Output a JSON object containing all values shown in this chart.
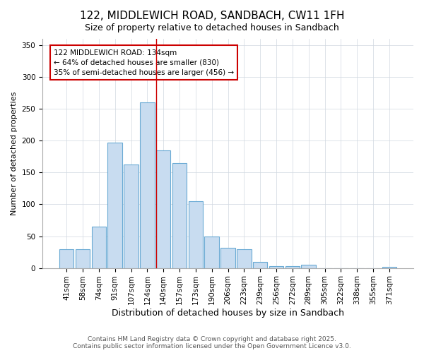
{
  "title": "122, MIDDLEWICH ROAD, SANDBACH, CW11 1FH",
  "subtitle": "Size of property relative to detached houses in Sandbach",
  "xlabel": "Distribution of detached houses by size in Sandbach",
  "ylabel": "Number of detached properties",
  "categories": [
    "41sqm",
    "58sqm",
    "74sqm",
    "91sqm",
    "107sqm",
    "124sqm",
    "140sqm",
    "157sqm",
    "173sqm",
    "190sqm",
    "206sqm",
    "223sqm",
    "239sqm",
    "256sqm",
    "272sqm",
    "289sqm",
    "305sqm",
    "322sqm",
    "338sqm",
    "355sqm",
    "371sqm"
  ],
  "values": [
    30,
    30,
    65,
    197,
    163,
    260,
    185,
    165,
    105,
    50,
    32,
    30,
    10,
    3,
    3,
    5,
    0,
    0,
    0,
    0,
    2
  ],
  "bar_color": "#c8dcf0",
  "bar_edge_color": "#6aaad4",
  "vline_color": "#cc0000",
  "vline_pos": 5.55,
  "annotation_text": "122 MIDDLEWICH ROAD: 134sqm\n← 64% of detached houses are smaller (830)\n35% of semi-detached houses are larger (456) →",
  "annotation_box_color": "#ffffff",
  "annotation_box_edge": "#cc0000",
  "ylim": [
    0,
    360
  ],
  "yticks": [
    0,
    50,
    100,
    150,
    200,
    250,
    300,
    350
  ],
  "footer": "Contains HM Land Registry data © Crown copyright and database right 2025.\nContains public sector information licensed under the Open Government Licence v3.0.",
  "bg_color": "#ffffff",
  "plot_bg_color": "#ffffff",
  "grid_color": "#d0d8e0",
  "title_fontsize": 11,
  "subtitle_fontsize": 9,
  "xlabel_fontsize": 9,
  "ylabel_fontsize": 8,
  "tick_fontsize": 7.5,
  "footer_fontsize": 6.5
}
